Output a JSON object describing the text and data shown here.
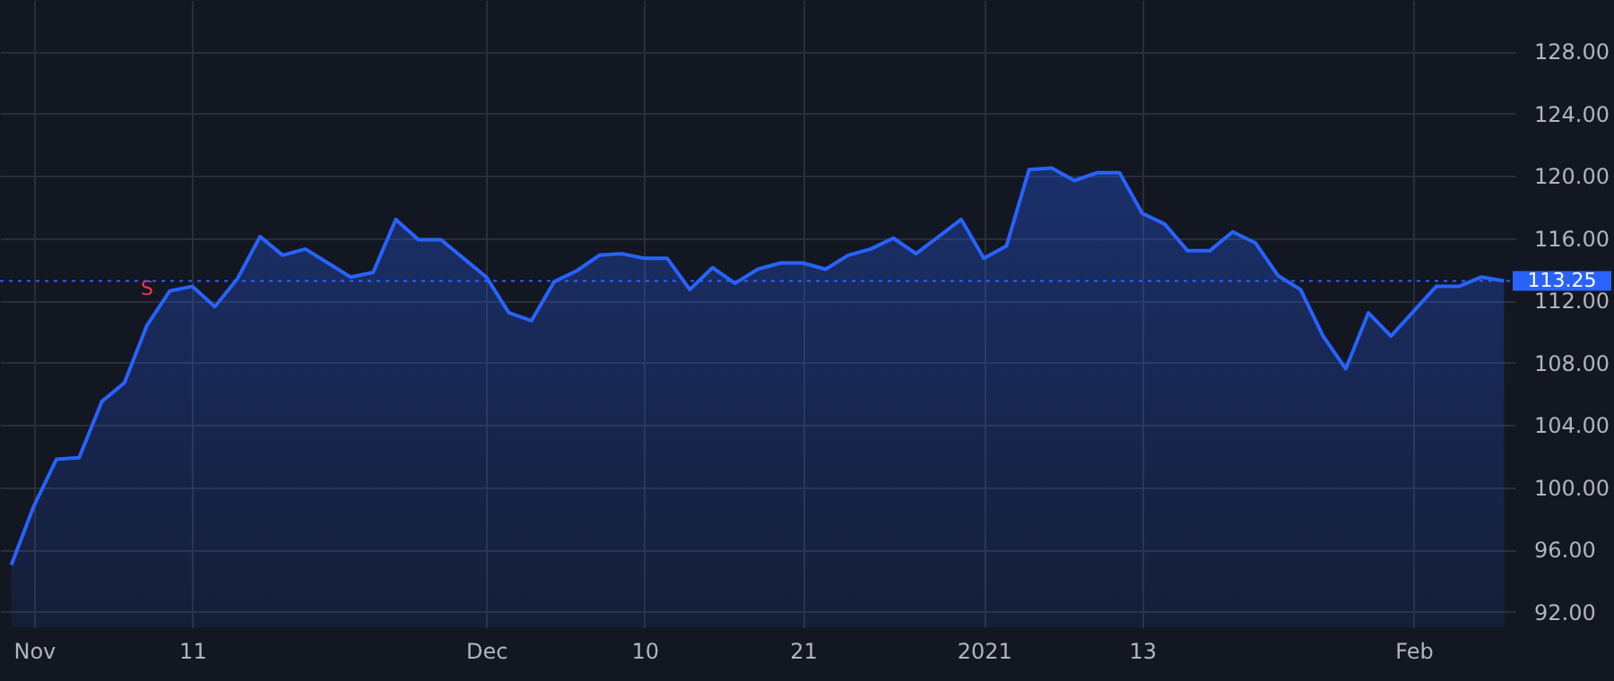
{
  "chart_data": {
    "type": "area",
    "categories": [
      null,
      "Nov",
      null,
      null,
      null,
      null,
      null,
      null,
      "11",
      null,
      null,
      null,
      null,
      null,
      null,
      null,
      null,
      null,
      null,
      null,
      null,
      "Dec",
      null,
      null,
      null,
      null,
      null,
      null,
      "10",
      null,
      null,
      null,
      null,
      null,
      null,
      "21",
      null,
      null,
      null,
      null,
      null,
      null,
      null,
      "2021",
      null,
      null,
      null,
      null,
      null,
      null,
      "13",
      null,
      null,
      null,
      null,
      null,
      null,
      null,
      null,
      null,
      null,
      null,
      "Feb",
      null,
      null,
      null,
      null
    ],
    "series": [
      {
        "color": "#2962ff",
        "values": [
          95.0,
          98.8,
          101.8,
          101.9,
          105.5,
          106.7,
          110.4,
          112.6,
          112.9,
          111.6,
          113.4,
          116.1,
          114.9,
          115.3,
          114.4,
          113.5,
          113.8,
          117.2,
          115.9,
          115.9,
          114.7,
          113.5,
          111.2,
          110.7,
          113.2,
          113.9,
          114.9,
          115.0,
          114.7,
          114.7,
          112.7,
          114.1,
          113.1,
          114.0,
          114.4,
          114.4,
          114.0,
          114.9,
          115.3,
          116.0,
          115.0,
          116.1,
          117.2,
          114.7,
          115.5,
          120.4,
          120.5,
          119.7,
          120.2,
          120.2,
          117.6,
          116.9,
          115.2,
          115.2,
          116.4,
          115.7,
          113.6,
          112.7,
          109.7,
          107.6,
          111.2,
          109.7,
          111.3,
          112.9,
          112.9,
          113.5,
          113.25
        ],
        "value_labels": [
          null,
          null,
          null,
          null,
          null,
          null,
          "S",
          null,
          null,
          null,
          null,
          null,
          null,
          null,
          null,
          null,
          null,
          null,
          null,
          null,
          null,
          null,
          null,
          null,
          null,
          null,
          null,
          null,
          null,
          null,
          null,
          null,
          null,
          null,
          null,
          null,
          null,
          null,
          null,
          null,
          null,
          null,
          null,
          null,
          null,
          null,
          null,
          null,
          null,
          null,
          null,
          null,
          null,
          null,
          null,
          null,
          null,
          null,
          null,
          null,
          null,
          null,
          null,
          null,
          null,
          null,
          null
        ]
      }
    ],
    "ylim": [
      91,
      131.3
    ],
    "yticks": [
      {
        "value": 92,
        "label": "92.00"
      },
      {
        "value": 96,
        "label": "96.00"
      },
      {
        "value": 100,
        "label": "100.00"
      },
      {
        "value": 104,
        "label": "104.00"
      },
      {
        "value": 108,
        "label": "108.00"
      },
      {
        "value": 112,
        "label": "112.00"
      },
      {
        "value": 116,
        "label": "116.00"
      },
      {
        "value": 120,
        "label": "120.00"
      },
      {
        "value": 124,
        "label": "124.00"
      },
      {
        "value": 128,
        "label": "128.00"
      }
    ],
    "ref_lines": [
      {
        "axis": "y",
        "value": 113.25,
        "label": "113.25",
        "color": "#2962ff",
        "line_style": "dotted"
      }
    ],
    "grid": true
  }
}
